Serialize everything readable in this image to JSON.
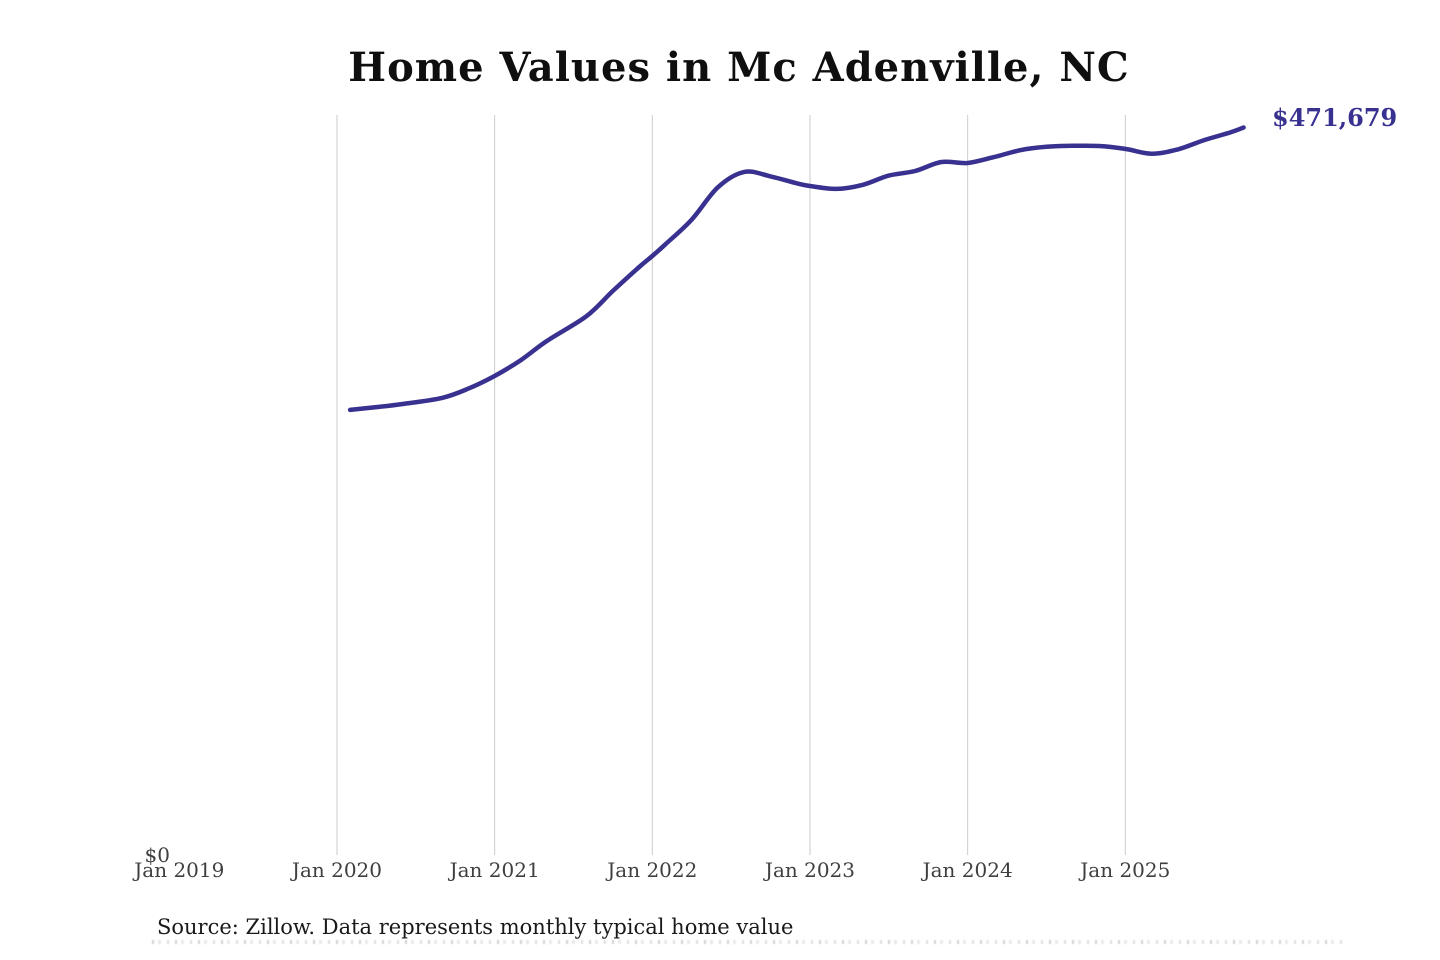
{
  "title": "Home Values in Mc Adenville, NC",
  "annotation": {
    "last_value_label": "$471,679"
  },
  "axes": {
    "y_zero_label": "$0",
    "x_ticks": [
      "Jan 2019",
      "Jan 2020",
      "Jan 2021",
      "Jan 2022",
      "Jan 2023",
      "Jan 2024",
      "Jan 2025"
    ]
  },
  "source_note": "Source: Zillow. Data represents monthly typical home value",
  "colors": {
    "line": "#39318f",
    "last_value_label": "#39318f",
    "gridline": "#cccccc",
    "axis_text": "#3f3f3f",
    "title_text": "#0f0f0f",
    "source_text": "#191919"
  },
  "chart_data": {
    "type": "line",
    "title": "Home Values in Mc Adenville, NC",
    "xlabel": "",
    "ylabel": "",
    "grid": "vertical-only",
    "legend": "none",
    "x_ticks": [
      "Jan 2019",
      "Jan 2020",
      "Jan 2021",
      "Jan 2022",
      "Jan 2023",
      "Jan 2024",
      "Jan 2025"
    ],
    "y_axis": {
      "min": 0,
      "min_label": "$0"
    },
    "last_value": 471679,
    "last_value_label": "$471,679",
    "series": [
      {
        "name": "Monthly typical home value",
        "points": [
          [
            "2020-02",
            288700
          ],
          [
            "2020-04",
            290500
          ],
          [
            "2020-06",
            292500
          ],
          [
            "2020-09",
            296500
          ],
          [
            "2020-11",
            302500
          ],
          [
            "2021-01",
            310700
          ],
          [
            "2021-03",
            321000
          ],
          [
            "2021-05",
            333500
          ],
          [
            "2021-08",
            349500
          ],
          [
            "2021-10",
            365800
          ],
          [
            "2021-12",
            381300
          ],
          [
            "2022-01",
            388400
          ],
          [
            "2022-02",
            396000
          ],
          [
            "2022-04",
            412000
          ],
          [
            "2022-06",
            433000
          ],
          [
            "2022-08",
            442900
          ],
          [
            "2022-10",
            440000
          ],
          [
            "2022-12",
            435500
          ],
          [
            "2023-01",
            433800
          ],
          [
            "2023-03",
            431900
          ],
          [
            "2023-05",
            434500
          ],
          [
            "2023-07",
            440500
          ],
          [
            "2023-09",
            443500
          ],
          [
            "2023-11",
            449300
          ],
          [
            "2024-01",
            448700
          ],
          [
            "2024-03",
            452500
          ],
          [
            "2024-05",
            457000
          ],
          [
            "2024-07",
            459200
          ],
          [
            "2024-09",
            459800
          ],
          [
            "2024-11",
            459700
          ],
          [
            "2025-01",
            457800
          ],
          [
            "2025-03",
            454700
          ],
          [
            "2025-05",
            457500
          ],
          [
            "2025-07",
            463500
          ],
          [
            "2025-09",
            468500
          ],
          [
            "2025-10",
            471679
          ]
        ]
      }
    ],
    "source": "Source: Zillow. Data represents monthly typical home value"
  }
}
